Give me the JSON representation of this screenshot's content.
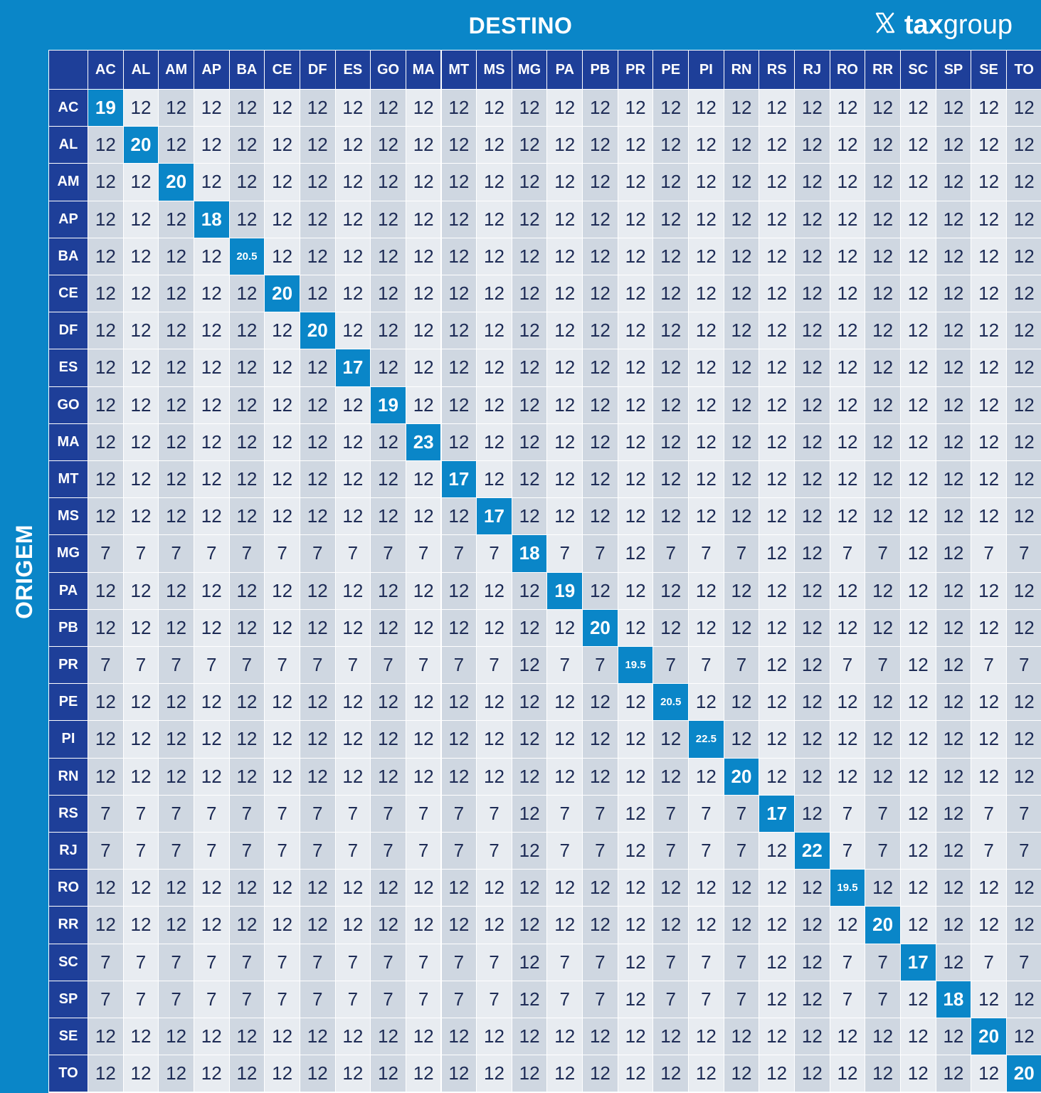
{
  "header": {
    "title": "DESTINO",
    "brand": "taxgroup",
    "brand_bold": "tax",
    "brand_light": "group",
    "logo_icon": "x-icon"
  },
  "side_label": "ORIGEM",
  "colors": {
    "background": "#0a86c8",
    "header_cell": "#1e3f99",
    "diagonal": "#0a86c8",
    "row_dark": "#cfd7e1",
    "row_light": "#e8ecf1",
    "text": "#1d2b55"
  },
  "chart_data": {
    "type": "table",
    "title": "DESTINO",
    "row_axis_label": "ORIGEM",
    "columns": [
      "AC",
      "AL",
      "AM",
      "AP",
      "BA",
      "CE",
      "DF",
      "ES",
      "GO",
      "MA",
      "MT",
      "MS",
      "MG",
      "PA",
      "PB",
      "PR",
      "PE",
      "PI",
      "RN",
      "RS",
      "RJ",
      "RO",
      "RR",
      "SC",
      "SP",
      "SE",
      "TO"
    ],
    "rows": [
      "AC",
      "AL",
      "AM",
      "AP",
      "BA",
      "CE",
      "DF",
      "ES",
      "GO",
      "MA",
      "MT",
      "MS",
      "MG",
      "PA",
      "PB",
      "PR",
      "PE",
      "PI",
      "RN",
      "RS",
      "RJ",
      "RO",
      "RR",
      "SC",
      "SP",
      "SE",
      "TO"
    ],
    "values": [
      [
        "19",
        "12",
        "12",
        "12",
        "12",
        "12",
        "12",
        "12",
        "12",
        "12",
        "12",
        "12",
        "12",
        "12",
        "12",
        "12",
        "12",
        "12",
        "12",
        "12",
        "12",
        "12",
        "12",
        "12",
        "12",
        "12",
        "12"
      ],
      [
        "12",
        "20",
        "12",
        "12",
        "12",
        "12",
        "12",
        "12",
        "12",
        "12",
        "12",
        "12",
        "12",
        "12",
        "12",
        "12",
        "12",
        "12",
        "12",
        "12",
        "12",
        "12",
        "12",
        "12",
        "12",
        "12",
        "12"
      ],
      [
        "12",
        "12",
        "20",
        "12",
        "12",
        "12",
        "12",
        "12",
        "12",
        "12",
        "12",
        "12",
        "12",
        "12",
        "12",
        "12",
        "12",
        "12",
        "12",
        "12",
        "12",
        "12",
        "12",
        "12",
        "12",
        "12",
        "12"
      ],
      [
        "12",
        "12",
        "12",
        "18",
        "12",
        "12",
        "12",
        "12",
        "12",
        "12",
        "12",
        "12",
        "12",
        "12",
        "12",
        "12",
        "12",
        "12",
        "12",
        "12",
        "12",
        "12",
        "12",
        "12",
        "12",
        "12",
        "12"
      ],
      [
        "12",
        "12",
        "12",
        "12",
        "20.5",
        "12",
        "12",
        "12",
        "12",
        "12",
        "12",
        "12",
        "12",
        "12",
        "12",
        "12",
        "12",
        "12",
        "12",
        "12",
        "12",
        "12",
        "12",
        "12",
        "12",
        "12",
        "12"
      ],
      [
        "12",
        "12",
        "12",
        "12",
        "12",
        "20",
        "12",
        "12",
        "12",
        "12",
        "12",
        "12",
        "12",
        "12",
        "12",
        "12",
        "12",
        "12",
        "12",
        "12",
        "12",
        "12",
        "12",
        "12",
        "12",
        "12",
        "12"
      ],
      [
        "12",
        "12",
        "12",
        "12",
        "12",
        "12",
        "20",
        "12",
        "12",
        "12",
        "12",
        "12",
        "12",
        "12",
        "12",
        "12",
        "12",
        "12",
        "12",
        "12",
        "12",
        "12",
        "12",
        "12",
        "12",
        "12",
        "12"
      ],
      [
        "12",
        "12",
        "12",
        "12",
        "12",
        "12",
        "12",
        "17",
        "12",
        "12",
        "12",
        "12",
        "12",
        "12",
        "12",
        "12",
        "12",
        "12",
        "12",
        "12",
        "12",
        "12",
        "12",
        "12",
        "12",
        "12",
        "12"
      ],
      [
        "12",
        "12",
        "12",
        "12",
        "12",
        "12",
        "12",
        "12",
        "19",
        "12",
        "12",
        "12",
        "12",
        "12",
        "12",
        "12",
        "12",
        "12",
        "12",
        "12",
        "12",
        "12",
        "12",
        "12",
        "12",
        "12",
        "12"
      ],
      [
        "12",
        "12",
        "12",
        "12",
        "12",
        "12",
        "12",
        "12",
        "12",
        "23",
        "12",
        "12",
        "12",
        "12",
        "12",
        "12",
        "12",
        "12",
        "12",
        "12",
        "12",
        "12",
        "12",
        "12",
        "12",
        "12",
        "12"
      ],
      [
        "12",
        "12",
        "12",
        "12",
        "12",
        "12",
        "12",
        "12",
        "12",
        "12",
        "17",
        "12",
        "12",
        "12",
        "12",
        "12",
        "12",
        "12",
        "12",
        "12",
        "12",
        "12",
        "12",
        "12",
        "12",
        "12",
        "12"
      ],
      [
        "12",
        "12",
        "12",
        "12",
        "12",
        "12",
        "12",
        "12",
        "12",
        "12",
        "12",
        "17",
        "12",
        "12",
        "12",
        "12",
        "12",
        "12",
        "12",
        "12",
        "12",
        "12",
        "12",
        "12",
        "12",
        "12",
        "12"
      ],
      [
        "7",
        "7",
        "7",
        "7",
        "7",
        "7",
        "7",
        "7",
        "7",
        "7",
        "7",
        "7",
        "18",
        "7",
        "7",
        "12",
        "7",
        "7",
        "7",
        "12",
        "12",
        "7",
        "7",
        "12",
        "12",
        "7",
        "7"
      ],
      [
        "12",
        "12",
        "12",
        "12",
        "12",
        "12",
        "12",
        "12",
        "12",
        "12",
        "12",
        "12",
        "12",
        "19",
        "12",
        "12",
        "12",
        "12",
        "12",
        "12",
        "12",
        "12",
        "12",
        "12",
        "12",
        "12",
        "12"
      ],
      [
        "12",
        "12",
        "12",
        "12",
        "12",
        "12",
        "12",
        "12",
        "12",
        "12",
        "12",
        "12",
        "12",
        "12",
        "20",
        "12",
        "12",
        "12",
        "12",
        "12",
        "12",
        "12",
        "12",
        "12",
        "12",
        "12",
        "12"
      ],
      [
        "7",
        "7",
        "7",
        "7",
        "7",
        "7",
        "7",
        "7",
        "7",
        "7",
        "7",
        "7",
        "12",
        "7",
        "7",
        "19.5",
        "7",
        "7",
        "7",
        "12",
        "12",
        "7",
        "7",
        "12",
        "12",
        "7",
        "7"
      ],
      [
        "12",
        "12",
        "12",
        "12",
        "12",
        "12",
        "12",
        "12",
        "12",
        "12",
        "12",
        "12",
        "12",
        "12",
        "12",
        "12",
        "20.5",
        "12",
        "12",
        "12",
        "12",
        "12",
        "12",
        "12",
        "12",
        "12",
        "12"
      ],
      [
        "12",
        "12",
        "12",
        "12",
        "12",
        "12",
        "12",
        "12",
        "12",
        "12",
        "12",
        "12",
        "12",
        "12",
        "12",
        "12",
        "12",
        "22.5",
        "12",
        "12",
        "12",
        "12",
        "12",
        "12",
        "12",
        "12",
        "12"
      ],
      [
        "12",
        "12",
        "12",
        "12",
        "12",
        "12",
        "12",
        "12",
        "12",
        "12",
        "12",
        "12",
        "12",
        "12",
        "12",
        "12",
        "12",
        "12",
        "20",
        "12",
        "12",
        "12",
        "12",
        "12",
        "12",
        "12",
        "12"
      ],
      [
        "7",
        "7",
        "7",
        "7",
        "7",
        "7",
        "7",
        "7",
        "7",
        "7",
        "7",
        "7",
        "12",
        "7",
        "7",
        "12",
        "7",
        "7",
        "7",
        "17",
        "12",
        "7",
        "7",
        "12",
        "12",
        "7",
        "7"
      ],
      [
        "7",
        "7",
        "7",
        "7",
        "7",
        "7",
        "7",
        "7",
        "7",
        "7",
        "7",
        "7",
        "12",
        "7",
        "7",
        "12",
        "7",
        "7",
        "7",
        "12",
        "22",
        "7",
        "7",
        "12",
        "12",
        "7",
        "7"
      ],
      [
        "12",
        "12",
        "12",
        "12",
        "12",
        "12",
        "12",
        "12",
        "12",
        "12",
        "12",
        "12",
        "12",
        "12",
        "12",
        "12",
        "12",
        "12",
        "12",
        "12",
        "12",
        "19.5",
        "12",
        "12",
        "12",
        "12",
        "12"
      ],
      [
        "12",
        "12",
        "12",
        "12",
        "12",
        "12",
        "12",
        "12",
        "12",
        "12",
        "12",
        "12",
        "12",
        "12",
        "12",
        "12",
        "12",
        "12",
        "12",
        "12",
        "12",
        "12",
        "20",
        "12",
        "12",
        "12",
        "12"
      ],
      [
        "7",
        "7",
        "7",
        "7",
        "7",
        "7",
        "7",
        "7",
        "7",
        "7",
        "7",
        "7",
        "12",
        "7",
        "7",
        "12",
        "7",
        "7",
        "7",
        "12",
        "12",
        "7",
        "7",
        "17",
        "12",
        "7",
        "7"
      ],
      [
        "7",
        "7",
        "7",
        "7",
        "7",
        "7",
        "7",
        "7",
        "7",
        "7",
        "7",
        "7",
        "12",
        "7",
        "7",
        "12",
        "7",
        "7",
        "7",
        "12",
        "12",
        "7",
        "7",
        "12",
        "18",
        "12",
        "12"
      ],
      [
        "12",
        "12",
        "12",
        "12",
        "12",
        "12",
        "12",
        "12",
        "12",
        "12",
        "12",
        "12",
        "12",
        "12",
        "12",
        "12",
        "12",
        "12",
        "12",
        "12",
        "12",
        "12",
        "12",
        "12",
        "12",
        "20",
        "12"
      ],
      [
        "12",
        "12",
        "12",
        "12",
        "12",
        "12",
        "12",
        "12",
        "12",
        "12",
        "12",
        "12",
        "12",
        "12",
        "12",
        "12",
        "12",
        "12",
        "12",
        "12",
        "12",
        "12",
        "12",
        "12",
        "12",
        "12",
        "20"
      ]
    ]
  }
}
